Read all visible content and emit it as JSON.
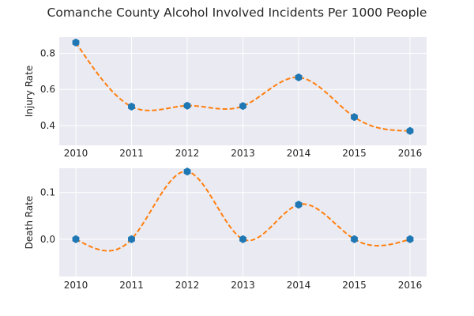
{
  "chart_data": {
    "type": "line",
    "title": "Comanche County Alcohol Involved Incidents Per 1000 People",
    "x": [
      "2010",
      "2011",
      "2012",
      "2013",
      "2014",
      "2015",
      "2016"
    ],
    "panels": [
      {
        "ylabel": "Injury Rate",
        "ylim": [
          0.29,
          0.89
        ],
        "yticks": [
          "0.4",
          "0.6",
          "0.8"
        ],
        "yticks_values": [
          0.4,
          0.6,
          0.8
        ],
        "values": [
          0.86,
          0.505,
          0.51,
          0.508,
          0.667,
          0.447,
          0.37
        ],
        "marker_color": "#1f77b4",
        "fit_color": "#ff7f0e",
        "fit_style": "dashed smooth curve"
      },
      {
        "ylabel": "Death Rate",
        "ylim": [
          -0.08,
          0.152
        ],
        "yticks": [
          "0.0",
          "0.1"
        ],
        "yticks_values": [
          0.0,
          0.1
        ],
        "values": [
          0.0,
          0.0,
          0.145,
          0.0,
          0.074,
          0.0,
          0.0
        ],
        "marker_color": "#1f77b4",
        "fit_color": "#ff7f0e",
        "fit_style": "dashed smooth curve"
      }
    ],
    "grid": true,
    "legend": "none"
  }
}
